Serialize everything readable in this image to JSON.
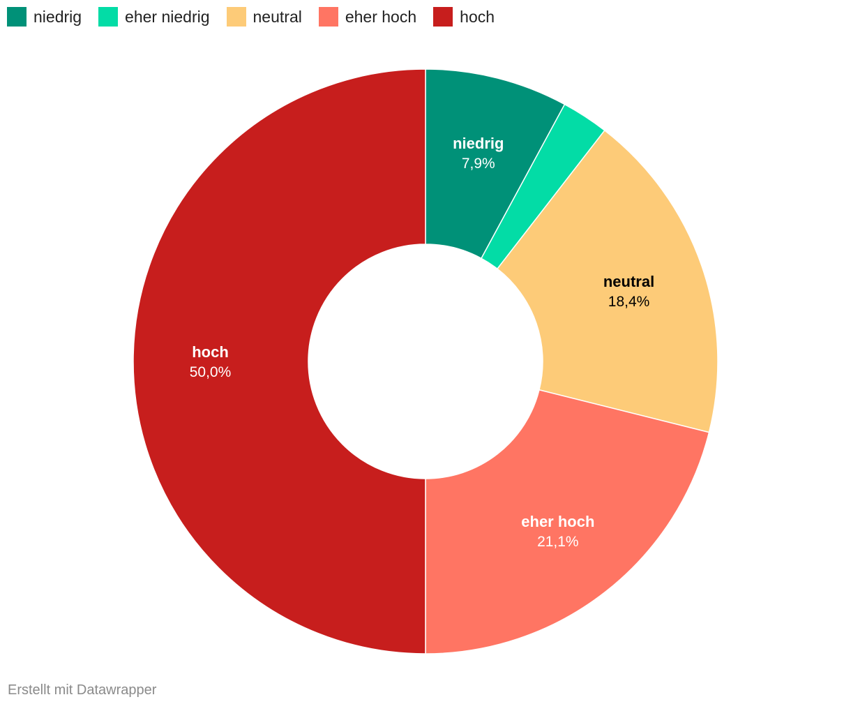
{
  "chart_data": {
    "type": "pie",
    "variant": "donut",
    "legend_position": "top-left",
    "categories": [
      "niedrig",
      "eher niedrig",
      "neutral",
      "eher hoch",
      "hoch"
    ],
    "values": [
      7.9,
      2.6,
      18.4,
      21.1,
      50.0
    ],
    "value_labels": [
      "7,9%",
      "",
      "18,4%",
      "21,1%",
      "50,0%"
    ],
    "colors": [
      "#009178",
      "#03dca6",
      "#fdcb78",
      "#ff7563",
      "#c71e1d"
    ],
    "label_colors": [
      "#ffffff",
      "#ffffff",
      "#000000",
      "#ffffff",
      "#ffffff"
    ]
  },
  "legend": {
    "items": [
      {
        "label": "niedrig",
        "color": "#009178"
      },
      {
        "label": "eher niedrig",
        "color": "#03dca6"
      },
      {
        "label": "neutral",
        "color": "#fdcb78"
      },
      {
        "label": "eher hoch",
        "color": "#ff7563"
      },
      {
        "label": "hoch",
        "color": "#c71e1d"
      }
    ]
  },
  "footer": {
    "credit": "Erstellt mit Datawrapper"
  }
}
